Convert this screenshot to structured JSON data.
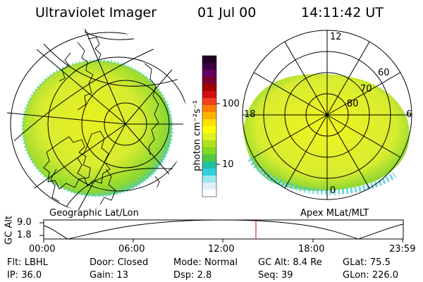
{
  "header": {
    "instrument": "Ultraviolet Imager",
    "date": "01 Jul 00",
    "time": "14:11:42 UT"
  },
  "left_panel": {
    "caption": "Geographic Lat/Lon"
  },
  "right_panel": {
    "caption": "Apex MLat/MLT",
    "mlt_labels": [
      "12",
      "18",
      "6",
      "0"
    ],
    "lat_labels": [
      "60",
      "70",
      "80"
    ]
  },
  "colorbar": {
    "unit_label": "photon cm⁻²s⁻¹",
    "scale": "log",
    "tick_labels": [
      "100",
      "10"
    ],
    "colors": [
      "#200020",
      "#3a0040",
      "#600060",
      "#7a0030",
      "#a00000",
      "#d01010",
      "#f04020",
      "#ff8000",
      "#ffb000",
      "#ffe000",
      "#ffff00",
      "#e0f020",
      "#b0e020",
      "#80d820",
      "#50c840",
      "#20c0a0",
      "#30d0e0",
      "#a0e8f0",
      "#e0f0f8",
      "#ffffff"
    ]
  },
  "altitude_plot": {
    "ylabel": "GC Alt",
    "ytick_labels": [
      "9.0",
      "1.8"
    ],
    "ylim": [
      1.8,
      9.0
    ],
    "xtick_labels": [
      "00:00",
      "06:00",
      "12:00",
      "18:00",
      "23:59"
    ],
    "current_time_marker_hours": 14.2,
    "marker_color": "#e00000"
  },
  "status": {
    "row1": [
      {
        "label": "Flt:",
        "value": "LBHL"
      },
      {
        "label": "Door:",
        "value": "Closed"
      },
      {
        "label": "Mode:",
        "value": "Normal"
      },
      {
        "label": "GC Alt:",
        "value": "8.4 Re"
      },
      {
        "label": "GLat:",
        "value": "75.5"
      }
    ],
    "row2": [
      {
        "label": "IP:",
        "value": "36.0"
      },
      {
        "label": "Gain:",
        "value": "13"
      },
      {
        "label": "Dsp:",
        "value": "2.8"
      },
      {
        "label": "Seq:",
        "value": "39"
      },
      {
        "label": "GLon:",
        "value": "226.0"
      }
    ]
  }
}
